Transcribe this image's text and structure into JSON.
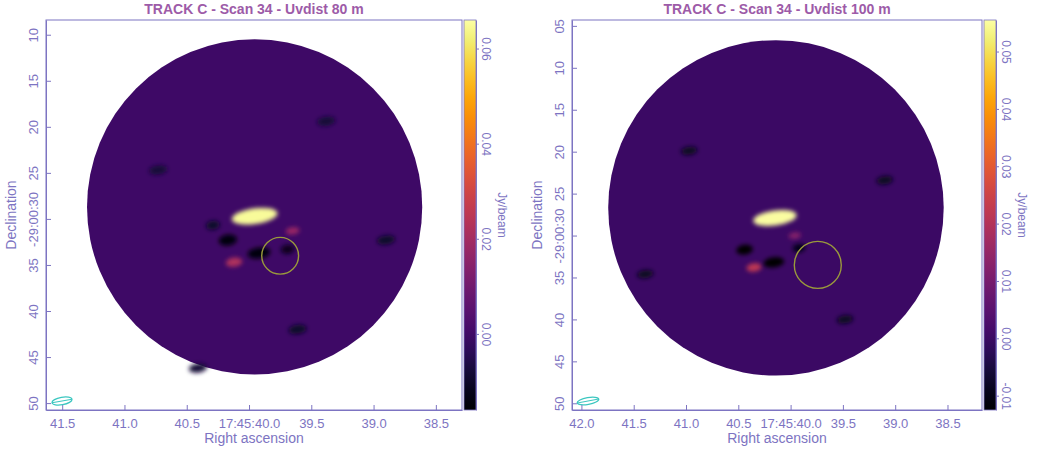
{
  "chart_data": [
    {
      "type": "image",
      "title": "TRACK C - Scan 34 - Uvdist 80 m",
      "x_label": "Right ascension",
      "y_label": "Declination",
      "xlim": [
        41.63,
        38.29
      ],
      "ylim": [
        8.4,
        50.75
      ],
      "xticks": [
        41.5,
        {
          "value": 41,
          "label": "41.0"
        },
        40.5,
        {
          "value": 40,
          "label": "17:45:40.0"
        },
        39.5,
        {
          "value": 39,
          "label": "39.0"
        },
        38.5
      ],
      "yticks": [
        10,
        15,
        20,
        25,
        {
          "value": 30,
          "label": "-29:00:30"
        },
        35,
        40,
        45,
        50
      ],
      "colorbar": {
        "label": "Jy/beam",
        "lim": [
          -0.016,
          0.066
        ],
        "ticks": [
          {
            "value": 0,
            "label": "0.00"
          },
          0.02,
          0.04,
          0.06
        ]
      },
      "field": {
        "ra": 39.955,
        "dec": 28.7,
        "radius": 18.2
      },
      "background": 0,
      "components": [
        {
          "ra": 39.955,
          "dec": 29.7,
          "major": 5.0,
          "minor": 1.7,
          "peak": 0.065
        },
        {
          "ra": 40.12,
          "dec": 34.7,
          "major": 1.8,
          "minor": 1.0,
          "peak": 0.022
        },
        {
          "ra": 39.65,
          "dec": 31.3,
          "major": 1.5,
          "minor": 0.8,
          "peak": 0.018
        },
        {
          "ra": 40.17,
          "dec": 32.3,
          "major": 2.0,
          "minor": 1.2,
          "peak": -0.015
        },
        {
          "ra": 39.92,
          "dec": 33.7,
          "major": 2.5,
          "minor": 1.2,
          "peak": -0.015
        },
        {
          "ra": 39.69,
          "dec": 33.3,
          "major": 1.5,
          "minor": 1.0,
          "peak": -0.012
        },
        {
          "ra": 40.29,
          "dec": 30.7,
          "major": 1.5,
          "minor": 1.0,
          "peak": -0.01
        },
        {
          "ra": 39.61,
          "dec": 42.0,
          "major": 2.0,
          "minor": 1.0,
          "peak": -0.01
        },
        {
          "ra": 40.73,
          "dec": 24.7,
          "major": 2.0,
          "minor": 1.0,
          "peak": -0.008
        },
        {
          "ra": 39.38,
          "dec": 19.4,
          "major": 2.0,
          "minor": 1.0,
          "peak": -0.008
        },
        {
          "ra": 40.41,
          "dec": 46.2,
          "major": 2.0,
          "minor": 1.0,
          "peak": -0.008
        },
        {
          "ra": 38.9,
          "dec": 32.3,
          "major": 2.0,
          "minor": 1.0,
          "peak": -0.01
        }
      ],
      "region": {
        "ra": 39.75,
        "dec": 34.0,
        "radius": 2.0
      },
      "beam": {
        "major": 2.2,
        "minor": 0.8
      }
    },
    {
      "type": "image",
      "title": "TRACK C - Scan 34 - Uvdist 100 m",
      "x_label": "Right ascension",
      "y_label": "Declination",
      "xlim": [
        42.09,
        38.17
      ],
      "ylim": [
        4.3,
        50.8
      ],
      "xticks": [
        {
          "value": 42,
          "label": "42.0"
        },
        41.5,
        {
          "value": 41,
          "label": "41.0"
        },
        40.5,
        {
          "value": 40,
          "label": "17:45:40.0"
        },
        39.5,
        {
          "value": 39,
          "label": "39.0"
        },
        38.5
      ],
      "yticks": [
        {
          "value": 5,
          "label": "05"
        },
        10,
        15,
        20,
        25,
        {
          "value": 30,
          "label": "-29:00:30"
        },
        35,
        40,
        45,
        50
      ],
      "colorbar": {
        "label": "Jy/beam",
        "lim": [
          -0.0125,
          0.0555
        ],
        "ticks": [
          -0.01,
          {
            "value": 0,
            "label": "0.00"
          },
          0.01,
          0.02,
          0.03,
          0.04,
          0.05
        ]
      },
      "field": {
        "ra": 40.14,
        "dec": 26.7,
        "radius": 20.0
      },
      "background": 0,
      "components": [
        {
          "ra": 40.15,
          "dec": 27.9,
          "major": 5.2,
          "minor": 1.8,
          "peak": 0.055
        },
        {
          "ra": 40.35,
          "dec": 33.8,
          "major": 1.8,
          "minor": 1.0,
          "peak": 0.022
        },
        {
          "ra": 39.96,
          "dec": 30.0,
          "major": 1.5,
          "minor": 0.8,
          "peak": 0.012
        },
        {
          "ra": 40.44,
          "dec": 31.7,
          "major": 2.0,
          "minor": 1.2,
          "peak": -0.012
        },
        {
          "ra": 40.16,
          "dec": 33.2,
          "major": 2.5,
          "minor": 1.2,
          "peak": -0.012
        },
        {
          "ra": 39.92,
          "dec": 31.5,
          "major": 1.5,
          "minor": 1.0,
          "peak": -0.01
        },
        {
          "ra": 41.39,
          "dec": 34.6,
          "major": 2.0,
          "minor": 1.0,
          "peak": -0.008
        },
        {
          "ra": 40.97,
          "dec": 19.9,
          "major": 2.0,
          "minor": 1.0,
          "peak": -0.008
        },
        {
          "ra": 39.48,
          "dec": 40.0,
          "major": 2.0,
          "minor": 1.0,
          "peak": -0.008
        },
        {
          "ra": 39.1,
          "dec": 23.4,
          "major": 2.0,
          "minor": 1.0,
          "peak": -0.008
        }
      ],
      "region": {
        "ra": 39.74,
        "dec": 33.5,
        "radius": 2.8
      },
      "beam": {
        "major": 2.6,
        "minor": 0.8
      }
    }
  ]
}
